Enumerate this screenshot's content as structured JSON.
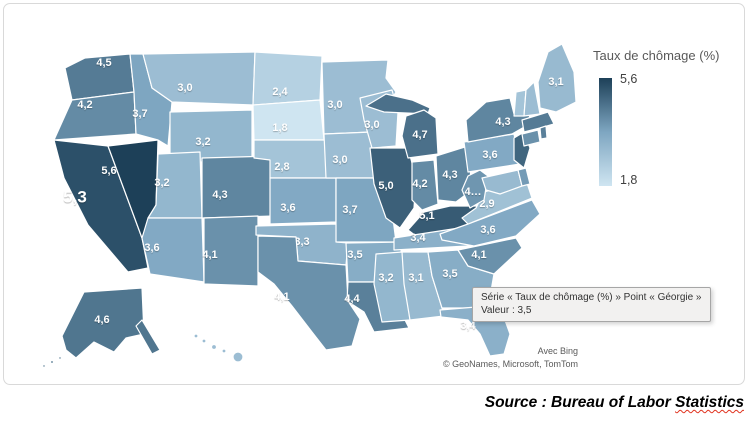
{
  "legend": {
    "title": "Taux de chômage (%)",
    "max_label": "5,6",
    "min_label": "1,8"
  },
  "tooltip": {
    "line1": "Série « Taux de chômage (%) » Point « Géorgie »",
    "line2": "Valeur : 3,5"
  },
  "attribution": {
    "bing": "Avec Bing",
    "copyright": "© GeoNames, Microsoft, TomTom"
  },
  "source": {
    "prefix": "Source : Bureau of Labor ",
    "misspelled": "Statistics"
  },
  "chart_data": {
    "type": "choropleth_map",
    "title": "Taux de chômage (%)",
    "unit": "%",
    "region": "United States (states)",
    "domain": [
      1.8,
      5.6
    ],
    "color_stops": [
      "#cfe5f1",
      "#7ea6c1",
      "#1d4058"
    ],
    "legend_position": "right",
    "states": [
      {
        "id": "WA",
        "name": "Washington",
        "value": 4.5,
        "label": "4,5",
        "labeled": true
      },
      {
        "id": "OR",
        "name": "Oregon",
        "value": 4.2,
        "label": "4,2",
        "labeled": true
      },
      {
        "id": "CA",
        "name": "Californie",
        "value": 5.3,
        "label": "5,3",
        "labeled": true,
        "label_size": 17
      },
      {
        "id": "NV",
        "name": "Nevada",
        "value": 5.6,
        "label": "5,6",
        "labeled": true
      },
      {
        "id": "ID",
        "name": "Idaho",
        "value": 3.7,
        "label": "3,7",
        "labeled": true
      },
      {
        "id": "MT",
        "name": "Montana",
        "value": 3.0,
        "label": "3,0",
        "labeled": true
      },
      {
        "id": "WY",
        "name": "Wyoming",
        "value": 3.2,
        "label": "3,2",
        "labeled": true
      },
      {
        "id": "UT",
        "name": "Utah",
        "value": 3.2,
        "label": "3,2",
        "labeled": true
      },
      {
        "id": "CO",
        "name": "Colorado",
        "value": 4.3,
        "label": "4,3",
        "labeled": true
      },
      {
        "id": "AZ",
        "name": "Arizona",
        "value": 3.6,
        "label": "3,6",
        "labeled": true
      },
      {
        "id": "NM",
        "name": "Nouveau-Mexique",
        "value": 4.1,
        "label": "4,1",
        "labeled": true
      },
      {
        "id": "ND",
        "name": "Dakota du Nord",
        "value": 2.4,
        "label": "2,4",
        "labeled": true
      },
      {
        "id": "SD",
        "name": "Dakota du Sud",
        "value": 1.8,
        "label": "1,8",
        "labeled": true
      },
      {
        "id": "NE",
        "name": "Nebraska",
        "value": 2.8,
        "label": "2,8",
        "labeled": true
      },
      {
        "id": "KS",
        "name": "Kansas",
        "value": 3.6,
        "label": "3,6",
        "labeled": true
      },
      {
        "id": "OK",
        "name": "Oklahoma",
        "value": 3.3,
        "label": "3,3",
        "labeled": true
      },
      {
        "id": "TX",
        "name": "Texas",
        "value": 4.1,
        "label": "4,1",
        "labeled": true
      },
      {
        "id": "MN",
        "name": "Minnesota",
        "value": 3.0,
        "label": "3,0",
        "labeled": true
      },
      {
        "id": "IA",
        "name": "Iowa",
        "value": 3.0,
        "label": "3,0",
        "labeled": true
      },
      {
        "id": "MO",
        "name": "Missouri",
        "value": 3.7,
        "label": "3,7",
        "labeled": true
      },
      {
        "id": "AR",
        "name": "Arkansas",
        "value": 3.5,
        "label": "3,5",
        "labeled": true
      },
      {
        "id": "LA",
        "name": "Louisiane",
        "value": 4.4,
        "label": "4,4",
        "labeled": true
      },
      {
        "id": "WI",
        "name": "Wisconsin",
        "value": 3.0,
        "label": "3,0",
        "labeled": true
      },
      {
        "id": "IL",
        "name": "Illinois",
        "value": 5.0,
        "label": "5,0",
        "labeled": true
      },
      {
        "id": "MI",
        "name": "Michigan",
        "value": 4.7,
        "label": "4,7",
        "labeled": true
      },
      {
        "id": "IN",
        "name": "Indiana",
        "value": 4.2,
        "label": "4,2",
        "labeled": true
      },
      {
        "id": "OH",
        "name": "Ohio",
        "value": 4.3,
        "label": "4,3",
        "labeled": true
      },
      {
        "id": "KY",
        "name": "Kentucky",
        "value": 5.1,
        "label": "5,1",
        "labeled": true
      },
      {
        "id": "TN",
        "name": "Tennessee",
        "value": 3.4,
        "label": "3,4",
        "labeled": true
      },
      {
        "id": "MS",
        "name": "Mississippi",
        "value": 3.2,
        "label": "3,2",
        "labeled": true
      },
      {
        "id": "AL",
        "name": "Alabama",
        "value": 3.1,
        "label": "3,1",
        "labeled": true
      },
      {
        "id": "GA",
        "name": "Géorgie",
        "value": 3.5,
        "label": "3,5",
        "labeled": true
      },
      {
        "id": "FL",
        "name": "Floride",
        "value": 3.4,
        "label": "3,4",
        "labeled": true
      },
      {
        "id": "SC",
        "name": "Caroline du Sud",
        "value": 4.1,
        "label": "4,1",
        "labeled": true
      },
      {
        "id": "NC",
        "name": "Caroline du Nord",
        "value": 3.6,
        "label": "3,6",
        "labeled": true
      },
      {
        "id": "VA",
        "name": "Virginie",
        "value": 2.9,
        "label": "2,9",
        "labeled": true
      },
      {
        "id": "WV",
        "name": "Virginie-Occidentale",
        "value": 4.0,
        "label": "4…",
        "labeled": true
      },
      {
        "id": "PA",
        "name": "Pennsylvanie",
        "value": 3.6,
        "label": "3,6",
        "labeled": true
      },
      {
        "id": "NY",
        "name": "New York",
        "value": 4.3,
        "label": "4,3",
        "labeled": true
      },
      {
        "id": "ME",
        "name": "Maine",
        "value": 3.1,
        "label": "3,1",
        "labeled": true
      },
      {
        "id": "AK",
        "name": "Alaska",
        "value": 4.6,
        "label": "4,6",
        "labeled": true
      },
      {
        "id": "NJ",
        "name": "New Jersey",
        "value": 4.9,
        "label": "",
        "labeled": false
      },
      {
        "id": "MD",
        "name": "Maryland",
        "value": 3.1,
        "label": "",
        "labeled": false
      },
      {
        "id": "DE",
        "name": "Delaware",
        "value": 3.9,
        "label": "",
        "labeled": false
      },
      {
        "id": "VT",
        "name": "Vermont",
        "value": 2.8,
        "label": "",
        "labeled": false
      },
      {
        "id": "NH",
        "name": "New Hampshire",
        "value": 3.0,
        "label": "",
        "labeled": false
      },
      {
        "id": "MA",
        "name": "Massachusetts",
        "value": 4.5,
        "label": "",
        "labeled": false
      },
      {
        "id": "CT",
        "name": "Connecticut",
        "value": 4.1,
        "label": "",
        "labeled": false
      },
      {
        "id": "RI",
        "name": "Rhode Island",
        "value": 4.4,
        "label": "",
        "labeled": false
      },
      {
        "id": "HI",
        "name": "Hawaï",
        "value": 3.0,
        "label": "",
        "labeled": false
      }
    ]
  }
}
